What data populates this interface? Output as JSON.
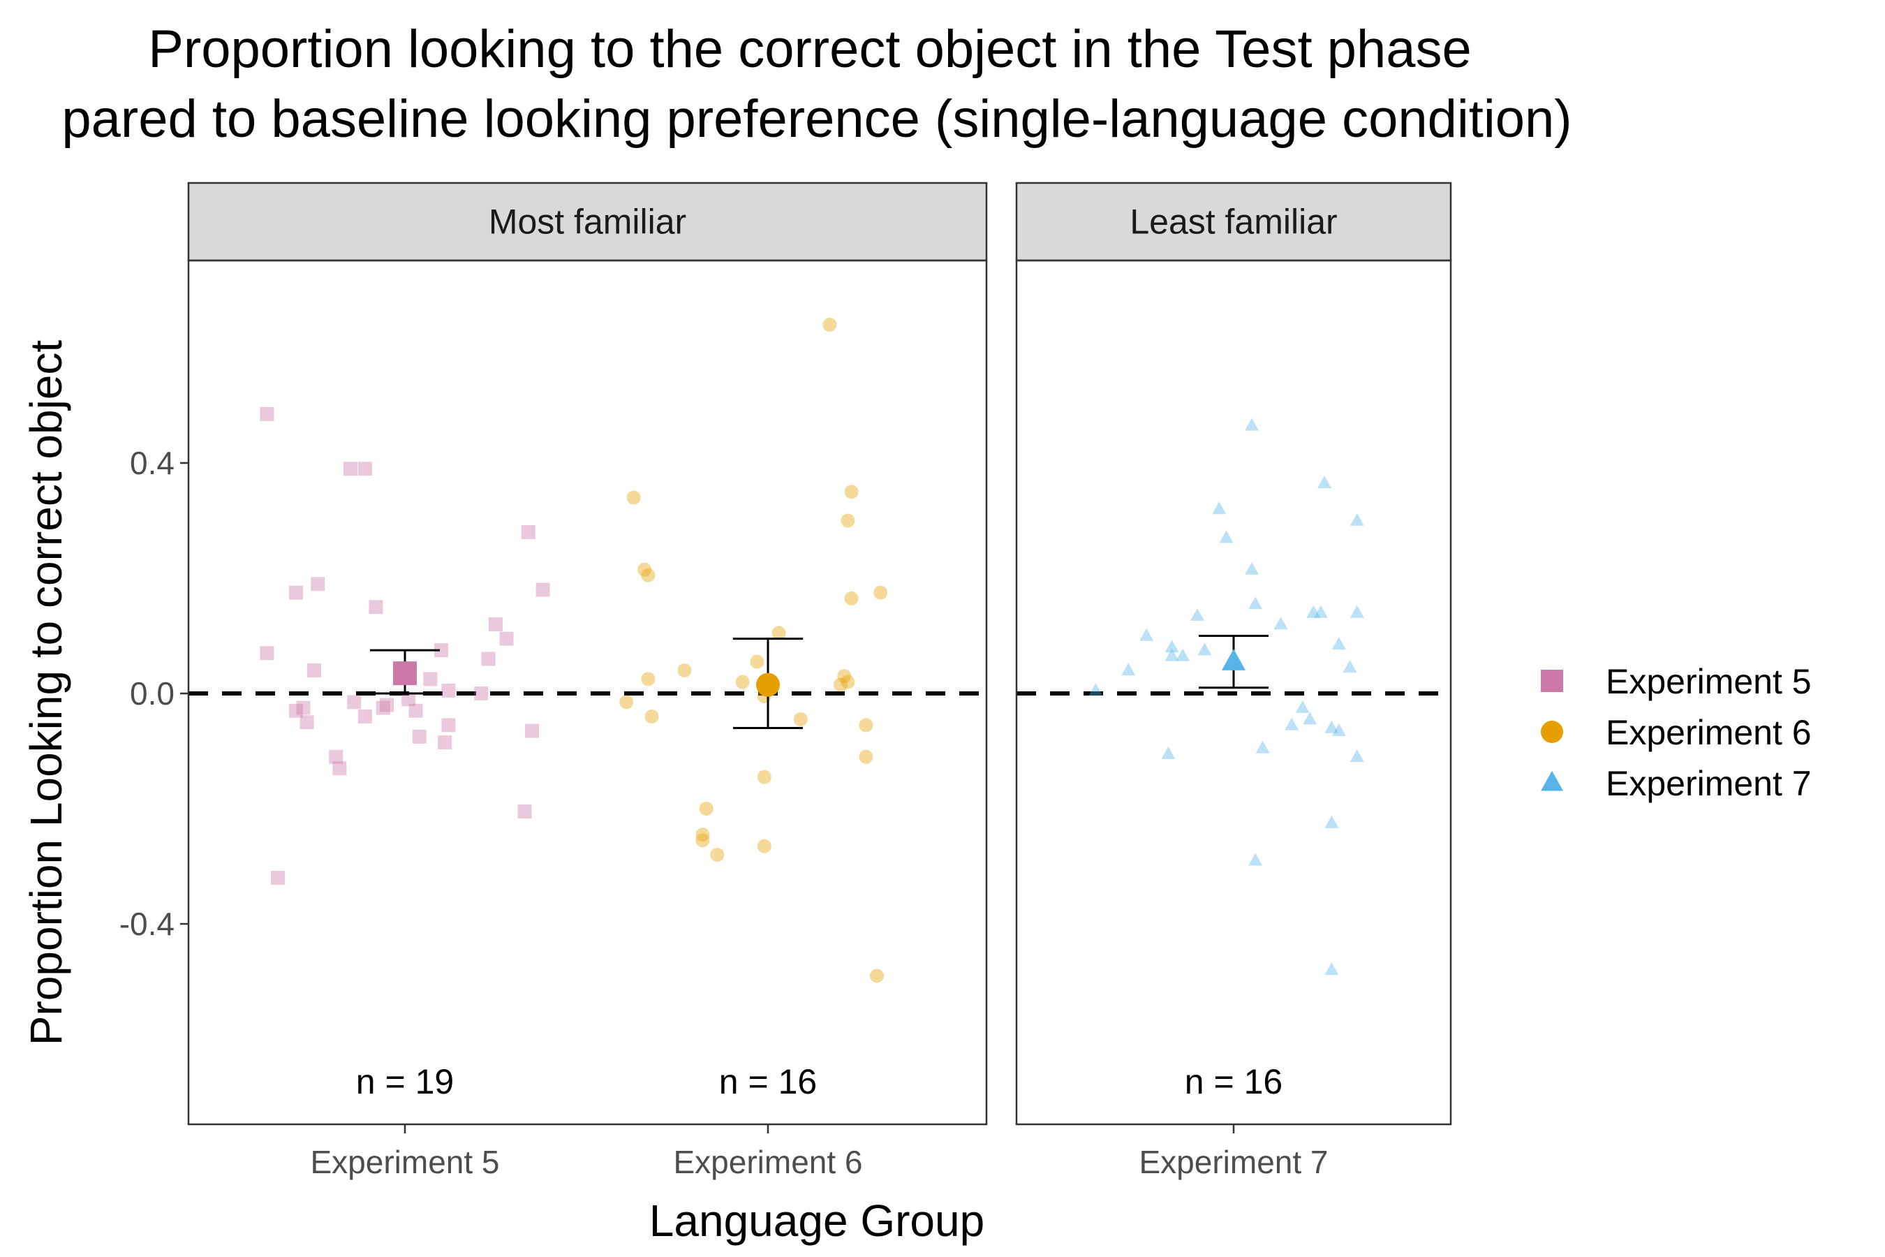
{
  "chart_data": {
    "type": "scatter",
    "title_line1": "Proportion looking to the correct object in the Test phase",
    "title_line2": "pared to baseline looking preference (single-language condition)",
    "xlabel": "Language Group",
    "ylabel": "Proportion Looking to correct object",
    "ylim": [
      -0.75,
      0.75
    ],
    "y_ticks": [
      -0.4,
      0.0,
      0.4
    ],
    "y_tick_labels": [
      "-0.4",
      "0.0",
      "0.4"
    ],
    "reference_line": 0.0,
    "grid": false,
    "legend_position": "right",
    "facets": [
      {
        "label": "Most familiar",
        "groups": [
          "Experiment 5",
          "Experiment 6"
        ]
      },
      {
        "label": "Least familiar",
        "groups": [
          "Experiment 7"
        ]
      }
    ],
    "groups": [
      {
        "name": "Experiment 5",
        "color": "#CC79A7",
        "shape": "square",
        "n_label": "n = 19",
        "mean": 0.035,
        "ci": [
          0.0,
          0.075
        ],
        "points": [
          {
            "dx": -0.38,
            "y": 0.485
          },
          {
            "dx": -0.15,
            "y": 0.39
          },
          {
            "dx": -0.11,
            "y": 0.39
          },
          {
            "dx": 0.34,
            "y": 0.28
          },
          {
            "dx": -0.24,
            "y": 0.19
          },
          {
            "dx": -0.3,
            "y": 0.175
          },
          {
            "dx": 0.38,
            "y": 0.18
          },
          {
            "dx": -0.08,
            "y": 0.15
          },
          {
            "dx": 0.25,
            "y": 0.12
          },
          {
            "dx": 0.28,
            "y": 0.095
          },
          {
            "dx": 0.1,
            "y": 0.075
          },
          {
            "dx": -0.38,
            "y": 0.07
          },
          {
            "dx": 0.23,
            "y": 0.06
          },
          {
            "dx": -0.25,
            "y": 0.04
          },
          {
            "dx": 0.07,
            "y": 0.025
          },
          {
            "dx": 0.12,
            "y": 0.005
          },
          {
            "dx": 0.21,
            "y": 0.0
          },
          {
            "dx": 0.01,
            "y": -0.01
          },
          {
            "dx": -0.14,
            "y": -0.015
          },
          {
            "dx": -0.05,
            "y": -0.02
          },
          {
            "dx": -0.06,
            "y": -0.025
          },
          {
            "dx": -0.28,
            "y": -0.025
          },
          {
            "dx": -0.3,
            "y": -0.03
          },
          {
            "dx": 0.03,
            "y": -0.03
          },
          {
            "dx": -0.11,
            "y": -0.04
          },
          {
            "dx": -0.27,
            "y": -0.05
          },
          {
            "dx": 0.12,
            "y": -0.055
          },
          {
            "dx": 0.35,
            "y": -0.065
          },
          {
            "dx": 0.04,
            "y": -0.075
          },
          {
            "dx": 0.11,
            "y": -0.085
          },
          {
            "dx": -0.19,
            "y": -0.11
          },
          {
            "dx": -0.18,
            "y": -0.13
          },
          {
            "dx": 0.33,
            "y": -0.205
          },
          {
            "dx": -0.35,
            "y": -0.32
          }
        ]
      },
      {
        "name": "Experiment 6",
        "color": "#E69F00",
        "shape": "circle",
        "n_label": "n = 16",
        "mean": 0.015,
        "ci": [
          -0.06,
          0.095
        ],
        "points": [
          {
            "dx": 0.17,
            "y": 0.64
          },
          {
            "dx": -0.37,
            "y": 0.34
          },
          {
            "dx": 0.23,
            "y": 0.35
          },
          {
            "dx": 0.22,
            "y": 0.3
          },
          {
            "dx": -0.34,
            "y": 0.215
          },
          {
            "dx": -0.33,
            "y": 0.205
          },
          {
            "dx": 0.31,
            "y": 0.175
          },
          {
            "dx": 0.23,
            "y": 0.165
          },
          {
            "dx": 0.03,
            "y": 0.105
          },
          {
            "dx": -0.03,
            "y": 0.055
          },
          {
            "dx": -0.23,
            "y": 0.04
          },
          {
            "dx": -0.33,
            "y": 0.025
          },
          {
            "dx": 0.21,
            "y": 0.03
          },
          {
            "dx": -0.07,
            "y": 0.02
          },
          {
            "dx": 0.22,
            "y": 0.02
          },
          {
            "dx": 0.2,
            "y": 0.015
          },
          {
            "dx": -0.01,
            "y": -0.005
          },
          {
            "dx": -0.39,
            "y": -0.015
          },
          {
            "dx": -0.32,
            "y": -0.04
          },
          {
            "dx": 0.09,
            "y": -0.045
          },
          {
            "dx": 0.27,
            "y": -0.055
          },
          {
            "dx": -0.01,
            "y": -0.145
          },
          {
            "dx": 0.27,
            "y": -0.11
          },
          {
            "dx": -0.17,
            "y": -0.2
          },
          {
            "dx": -0.18,
            "y": -0.245
          },
          {
            "dx": -0.18,
            "y": -0.255
          },
          {
            "dx": -0.01,
            "y": -0.265
          },
          {
            "dx": -0.14,
            "y": -0.28
          },
          {
            "dx": 0.3,
            "y": -0.49
          }
        ]
      },
      {
        "name": "Experiment 7",
        "color": "#56B4E9",
        "shape": "triangle",
        "n_label": "n = 16",
        "mean": 0.055,
        "ci": [
          0.01,
          0.1
        ],
        "points": [
          {
            "dx": 0.05,
            "y": 0.465
          },
          {
            "dx": 0.25,
            "y": 0.365
          },
          {
            "dx": -0.04,
            "y": 0.32
          },
          {
            "dx": 0.34,
            "y": 0.3
          },
          {
            "dx": -0.02,
            "y": 0.27
          },
          {
            "dx": 0.05,
            "y": 0.215
          },
          {
            "dx": 0.06,
            "y": 0.155
          },
          {
            "dx": 0.22,
            "y": 0.14
          },
          {
            "dx": 0.24,
            "y": 0.14
          },
          {
            "dx": 0.34,
            "y": 0.14
          },
          {
            "dx": -0.1,
            "y": 0.135
          },
          {
            "dx": 0.13,
            "y": 0.12
          },
          {
            "dx": -0.24,
            "y": 0.1
          },
          {
            "dx": 0.29,
            "y": 0.085
          },
          {
            "dx": -0.17,
            "y": 0.08
          },
          {
            "dx": -0.08,
            "y": 0.075
          },
          {
            "dx": -0.17,
            "y": 0.065
          },
          {
            "dx": -0.14,
            "y": 0.065
          },
          {
            "dx": 0.32,
            "y": 0.045
          },
          {
            "dx": -0.29,
            "y": 0.04
          },
          {
            "dx": -0.38,
            "y": 0.005
          },
          {
            "dx": 0.19,
            "y": -0.025
          },
          {
            "dx": 0.21,
            "y": -0.045
          },
          {
            "dx": 0.16,
            "y": -0.055
          },
          {
            "dx": 0.27,
            "y": -0.06
          },
          {
            "dx": 0.29,
            "y": -0.065
          },
          {
            "dx": 0.08,
            "y": -0.095
          },
          {
            "dx": -0.18,
            "y": -0.105
          },
          {
            "dx": 0.34,
            "y": -0.11
          },
          {
            "dx": 0.27,
            "y": -0.225
          },
          {
            "dx": 0.06,
            "y": -0.29
          },
          {
            "dx": 0.27,
            "y": -0.48
          }
        ]
      }
    ]
  }
}
